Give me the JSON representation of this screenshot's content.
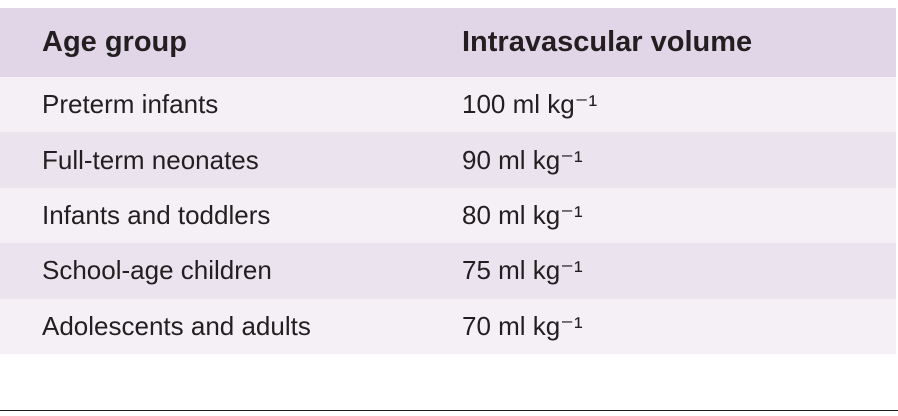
{
  "table": {
    "header": [
      "Age group",
      "Intravascular volume"
    ],
    "rows": [
      [
        "Preterm infants",
        "100 ml kg⁻¹"
      ],
      [
        "Full-term neonates",
        "90 ml kg⁻¹"
      ],
      [
        "Infants and toddlers",
        "80 ml kg⁻¹"
      ],
      [
        "School-age children",
        "75 ml kg⁻¹"
      ],
      [
        "Adolescents and adults",
        "70 ml kg⁻¹"
      ]
    ]
  }
}
